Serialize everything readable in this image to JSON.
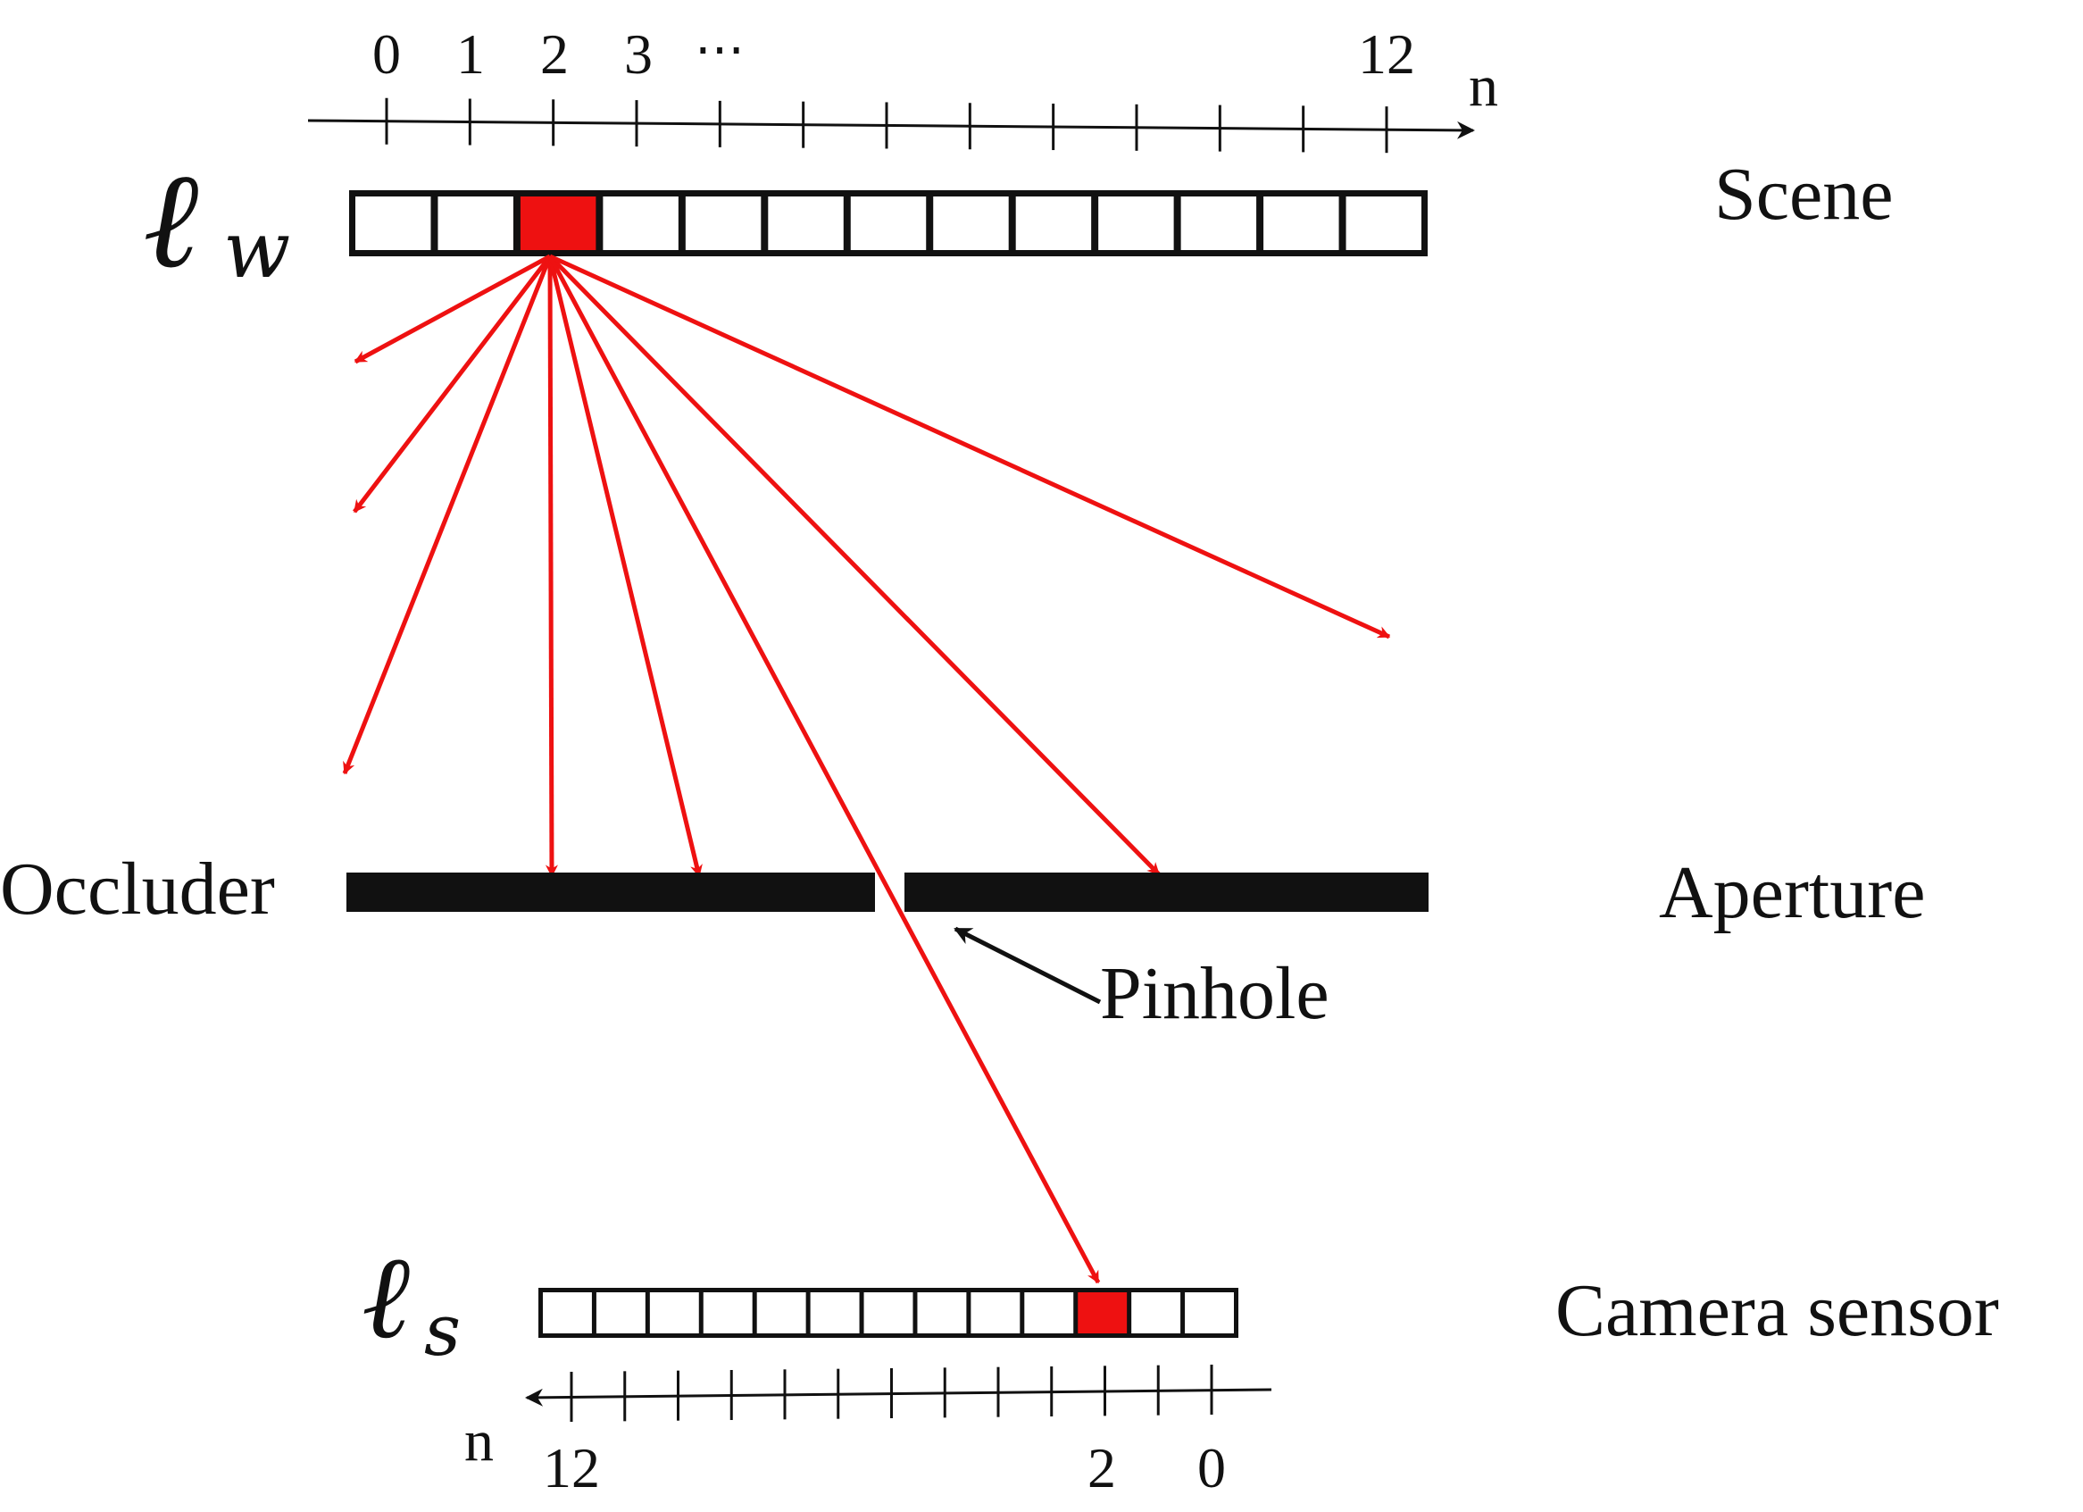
{
  "colors": {
    "ray": "#ee1111",
    "highlight": "#ee1111",
    "ink": "#111111",
    "cell_fill": "#ffffff",
    "background": "#ffffff"
  },
  "scene": {
    "symbol": "ℓ",
    "subscript": "w",
    "label": "Scene",
    "axis_label": "n",
    "tick_labels": [
      "0",
      "1",
      "2",
      "3",
      "⋯"
    ],
    "end_tick_label": "12",
    "pixel_count": 13,
    "highlighted_pixel": 2
  },
  "aperture": {
    "left_label": "Occluder",
    "right_label": "Aperture",
    "pinhole_label": "Pinhole"
  },
  "sensor": {
    "symbol": "ℓ",
    "subscript": "s",
    "label": "Camera sensor",
    "axis_label": "n",
    "tick_labels": [
      "12",
      "2",
      "0"
    ],
    "pixel_count": 13,
    "highlighted_pixel": 2
  }
}
